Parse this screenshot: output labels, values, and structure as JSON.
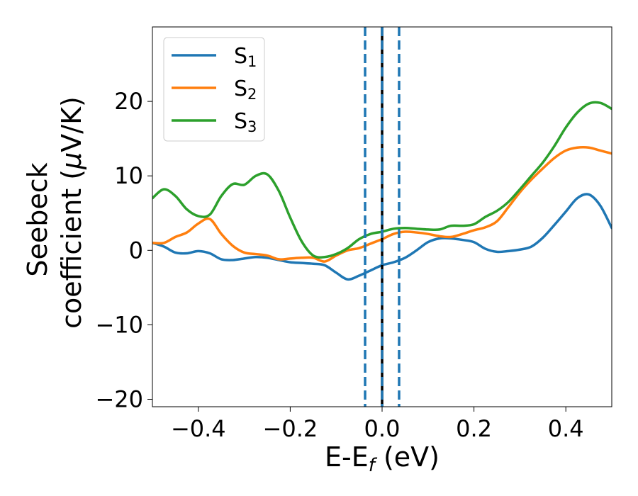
{
  "chart_data": {
    "type": "line",
    "title": "",
    "xlabel": {
      "main": "E-E",
      "sub": "f",
      "suffix": " (eV)"
    },
    "ylabel": {
      "line1": "Seebeck",
      "line2_prefix": "coefficient  (",
      "mu": "μ",
      "line2_suffix": "V/K)"
    },
    "xlim": [
      -0.5,
      0.5
    ],
    "ylim": [
      -21,
      30
    ],
    "xticks": [
      -0.4,
      -0.2,
      0.0,
      0.2,
      0.4
    ],
    "xtick_labels": [
      "−0.4",
      "−0.2",
      "0.0",
      "0.2",
      "0.4"
    ],
    "yticks": [
      -20,
      -10,
      0,
      10,
      20
    ],
    "ytick_labels": [
      "−20",
      "−10",
      "0",
      "10",
      "20"
    ],
    "legend_position": "top-left",
    "series": [
      {
        "name": "S",
        "sub": "1",
        "color": "#1f77b4",
        "x": [
          -0.5,
          -0.475,
          -0.45,
          -0.425,
          -0.4,
          -0.375,
          -0.35,
          -0.325,
          -0.3,
          -0.275,
          -0.25,
          -0.225,
          -0.2,
          -0.175,
          -0.15,
          -0.125,
          -0.1,
          -0.075,
          -0.05,
          -0.025,
          0.0,
          0.025,
          0.05,
          0.075,
          0.1,
          0.125,
          0.15,
          0.175,
          0.2,
          0.225,
          0.25,
          0.275,
          0.3,
          0.325,
          0.35,
          0.375,
          0.4,
          0.425,
          0.45,
          0.475,
          0.5
        ],
        "y": [
          1.0,
          0.5,
          -0.3,
          -0.4,
          -0.1,
          -0.4,
          -1.2,
          -1.3,
          -1.1,
          -0.9,
          -1.0,
          -1.3,
          -1.6,
          -1.7,
          -1.8,
          -2.0,
          -3.0,
          -3.9,
          -3.4,
          -2.7,
          -2.0,
          -1.6,
          -1.0,
          0.0,
          1.1,
          1.6,
          1.6,
          1.4,
          1.1,
          0.2,
          -0.2,
          -0.1,
          0.1,
          0.5,
          1.7,
          3.4,
          5.2,
          7.0,
          7.5,
          6.0,
          3.0
        ]
      },
      {
        "name": "S",
        "sub": "2",
        "color": "#ff7f0e",
        "x": [
          -0.5,
          -0.475,
          -0.45,
          -0.425,
          -0.4,
          -0.375,
          -0.35,
          -0.325,
          -0.3,
          -0.275,
          -0.25,
          -0.225,
          -0.2,
          -0.175,
          -0.15,
          -0.125,
          -0.1,
          -0.075,
          -0.05,
          -0.025,
          0.0,
          0.025,
          0.05,
          0.075,
          0.1,
          0.125,
          0.15,
          0.175,
          0.2,
          0.225,
          0.25,
          0.275,
          0.3,
          0.325,
          0.35,
          0.375,
          0.4,
          0.425,
          0.45,
          0.475,
          0.5
        ],
        "y": [
          1.0,
          1.0,
          1.8,
          2.4,
          3.6,
          4.2,
          2.2,
          0.6,
          -0.3,
          -0.5,
          -0.7,
          -1.2,
          -1.1,
          -1.0,
          -1.0,
          -1.5,
          -0.7,
          0.0,
          0.3,
          0.9,
          1.5,
          2.2,
          2.5,
          2.4,
          2.2,
          1.9,
          1.8,
          2.2,
          2.7,
          3.1,
          3.9,
          5.8,
          7.8,
          9.5,
          11.0,
          12.4,
          13.4,
          13.8,
          13.8,
          13.4,
          13.0
        ]
      },
      {
        "name": "S",
        "sub": "3",
        "color": "#2ca02c",
        "x": [
          -0.5,
          -0.475,
          -0.45,
          -0.425,
          -0.4,
          -0.375,
          -0.35,
          -0.325,
          -0.3,
          -0.275,
          -0.25,
          -0.225,
          -0.2,
          -0.175,
          -0.15,
          -0.125,
          -0.1,
          -0.075,
          -0.05,
          -0.025,
          0.0,
          0.025,
          0.05,
          0.075,
          0.1,
          0.125,
          0.15,
          0.175,
          0.2,
          0.225,
          0.25,
          0.275,
          0.3,
          0.325,
          0.35,
          0.375,
          0.4,
          0.425,
          0.45,
          0.475,
          0.5
        ],
        "y": [
          7.0,
          8.2,
          7.3,
          5.5,
          4.6,
          4.8,
          7.3,
          8.9,
          8.8,
          10.0,
          10.2,
          8.0,
          4.4,
          1.2,
          -0.7,
          -0.9,
          -0.5,
          0.3,
          1.5,
          2.2,
          2.5,
          2.9,
          3.0,
          2.9,
          2.8,
          2.8,
          3.3,
          3.3,
          3.5,
          4.5,
          5.3,
          6.5,
          8.2,
          10.0,
          11.8,
          14.0,
          16.5,
          18.5,
          19.7,
          19.8,
          19.0
        ]
      }
    ],
    "vlines": [
      {
        "x": -0.037,
        "color": "#1f77b4",
        "style": "dashed"
      },
      {
        "x": 0.0,
        "color": "#000000",
        "style": "solid"
      },
      {
        "x": 0.0,
        "color": "#1f77b4",
        "style": "dashed"
      },
      {
        "x": 0.037,
        "color": "#1f77b4",
        "style": "dashed"
      }
    ]
  }
}
